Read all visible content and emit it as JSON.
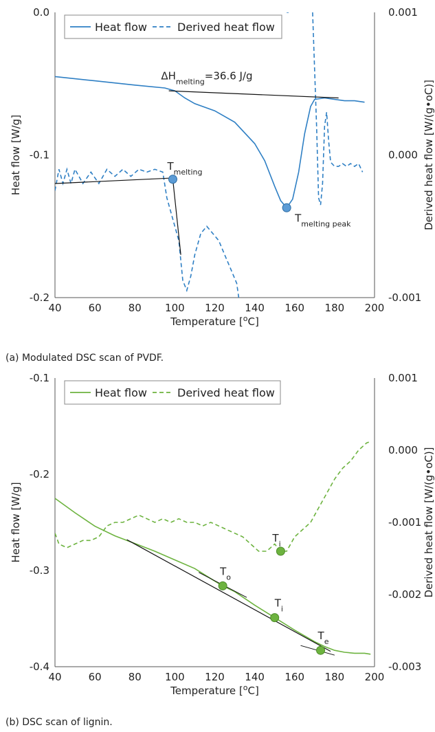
{
  "chart_data": [
    {
      "type": "line",
      "caption": "(a) Modulated DSC scan of PVDF.",
      "xlabel": "Temperature [",
      "xlabel_sup": "o",
      "xlabel_end": "C]",
      "ylabel": "Heat flow [W/g]",
      "y2label": "Derived heat flow [W/(g•oC)]",
      "xlim": [
        40,
        200
      ],
      "ylim": [
        -0.2,
        0.0
      ],
      "y2lim": [
        -0.001,
        0.001
      ],
      "xticks": [
        "40",
        "60",
        "80",
        "100",
        "120",
        "140",
        "160",
        "180",
        "200"
      ],
      "yticks": [
        "0.0",
        "-0.1",
        "-0.2"
      ],
      "y2ticks": [
        "0.001",
        "0.000",
        "-0.001"
      ],
      "legend": [
        "Heat flow",
        "Derived heat flow"
      ],
      "grid": false,
      "legend_position": "top-left",
      "colors": {
        "heat": "#2e7fc4",
        "derived": "#2e7fc4",
        "marker": "#5b9bd5"
      },
      "series": [
        {
          "name": "Heat flow",
          "axis": "left",
          "x": [
            40,
            60,
            80,
            95,
            100,
            105,
            110,
            120,
            130,
            140,
            145,
            150,
            153,
            156,
            159,
            162,
            165,
            168,
            170,
            175,
            180,
            185,
            190,
            195
          ],
          "y": [
            -0.045,
            -0.048,
            -0.051,
            -0.053,
            -0.055,
            -0.06,
            -0.064,
            -0.069,
            -0.077,
            -0.092,
            -0.104,
            -0.122,
            -0.132,
            -0.137,
            -0.131,
            -0.112,
            -0.085,
            -0.066,
            -0.061,
            -0.06,
            -0.061,
            -0.062,
            -0.062,
            -0.063
          ]
        },
        {
          "name": "Derived heat flow",
          "axis": "right",
          "x": [
            40,
            42,
            44,
            46,
            48,
            50,
            54,
            58,
            62,
            66,
            70,
            74,
            78,
            82,
            86,
            90,
            94,
            96,
            98,
            100,
            102,
            104,
            106,
            108,
            110,
            113,
            116,
            119,
            122,
            125,
            128,
            131,
            132,
            134,
            136,
            138,
            140,
            142,
            144,
            146,
            148,
            150,
            152,
            154,
            155,
            156,
            157,
            158,
            160,
            162,
            164,
            166,
            168,
            169,
            170,
            171,
            172,
            173,
            174,
            175,
            176,
            177,
            178,
            180,
            182,
            184,
            186,
            188,
            190,
            192,
            194
          ],
          "y": [
            -0.00025,
            -0.0001,
            -0.0002,
            -0.0001,
            -0.0002,
            -0.0001,
            -0.0002,
            -0.00012,
            -0.0002,
            -0.0001,
            -0.00015,
            -0.0001,
            -0.00015,
            -0.0001,
            -0.00012,
            -0.0001,
            -0.00012,
            -0.0003,
            -0.0004,
            -0.0005,
            -0.0006,
            -0.00088,
            -0.00095,
            -0.00085,
            -0.0007,
            -0.00055,
            -0.0005,
            -0.00055,
            -0.0006,
            -0.0007,
            -0.0008,
            -0.0009,
            -0.001,
            null,
            null,
            null,
            null,
            null,
            null,
            null,
            null,
            null,
            null,
            null,
            null,
            0.001,
            0.001,
            null,
            null,
            null,
            null,
            null,
            null,
            0.001,
            0.0006,
            0.0002,
            -0.0003,
            -0.00035,
            -0.0002,
            0.0002,
            0.0003,
            0.0001,
            -5e-05,
            -8e-05,
            -8e-05,
            -6e-05,
            -8e-05,
            -6e-05,
            -8e-05,
            -6e-05,
            -0.00012
          ]
        }
      ],
      "annotations": {
        "delta_h": "ΔH",
        "delta_h_sub": "melting",
        "delta_h_val": "=36.6 J/g",
        "t_label": "T",
        "t_melting_sub": "melting",
        "t_peak_sub": "melting peak",
        "t_melting_point": [
          99,
          -0.117
        ],
        "t_peak_point": [
          156,
          -0.137
        ],
        "baseline": [
          [
            97,
            -0.055
          ],
          [
            182,
            -0.06
          ]
        ],
        "onset_line": [
          [
            40,
            -0.12
          ],
          [
            101,
            -0.116
          ]
        ],
        "onset_tangent": [
          [
            99,
            -0.117
          ],
          [
            103,
            -0.17
          ]
        ]
      }
    },
    {
      "type": "line",
      "caption": "(b) DSC scan of lignin.",
      "xlabel": "Temperature [",
      "xlabel_sup": "o",
      "xlabel_end": "C]",
      "ylabel": "Heat flow [W/g]",
      "y2label": "Derived heat flow [W/(g•oC)]",
      "xlim": [
        40,
        200
      ],
      "ylim": [
        -0.4,
        -0.1
      ],
      "y2lim": [
        -0.003,
        0.001
      ],
      "xticks": [
        "40",
        "60",
        "80",
        "100",
        "120",
        "140",
        "160",
        "180",
        "200"
      ],
      "yticks": [
        "-0.1",
        "-0.2",
        "-0.3",
        "-0.4"
      ],
      "y2ticks": [
        "0.001",
        "0.000",
        "-0.001",
        "-0.002",
        "-0.003"
      ],
      "legend": [
        "Heat flow",
        "Derived heat flow"
      ],
      "grid": false,
      "legend_position": "top-left",
      "colors": {
        "heat": "#6db33f",
        "derived": "#6db33f",
        "marker": "#6db33f"
      },
      "series": [
        {
          "name": "Heat flow",
          "axis": "left",
          "x": [
            40,
            50,
            60,
            70,
            80,
            90,
            100,
            110,
            120,
            124,
            130,
            140,
            150,
            160,
            170,
            175,
            180,
            185,
            190,
            195,
            198
          ],
          "y": [
            -0.225,
            -0.24,
            -0.254,
            -0.264,
            -0.272,
            -0.28,
            -0.289,
            -0.298,
            -0.311,
            -0.316,
            -0.322,
            -0.336,
            -0.349,
            -0.362,
            -0.374,
            -0.379,
            -0.383,
            -0.385,
            -0.386,
            -0.386,
            -0.387
          ]
        },
        {
          "name": "Derived heat flow",
          "axis": "right",
          "x": [
            40,
            42,
            46,
            50,
            54,
            58,
            62,
            66,
            70,
            74,
            78,
            82,
            86,
            90,
            94,
            98,
            102,
            106,
            110,
            114,
            118,
            122,
            126,
            130,
            134,
            138,
            142,
            146,
            150,
            153,
            156,
            160,
            164,
            168,
            172,
            176,
            180,
            184,
            188,
            192,
            196,
            198
          ],
          "y": [
            -0.00115,
            -0.0013,
            -0.00135,
            -0.0013,
            -0.00125,
            -0.00125,
            -0.0012,
            -0.00105,
            -0.001,
            -0.001,
            -0.00095,
            -0.0009,
            -0.00095,
            -0.001,
            -0.00095,
            -0.001,
            -0.00095,
            -0.001,
            -0.001,
            -0.00105,
            -0.001,
            -0.00105,
            -0.0011,
            -0.00115,
            -0.0012,
            -0.0013,
            -0.0014,
            -0.0014,
            -0.0013,
            -0.0014,
            -0.0014,
            -0.0012,
            -0.0011,
            -0.001,
            -0.0008,
            -0.0006,
            -0.0004,
            -0.00025,
            -0.00015,
            0.0,
            0.0001,
            0.00012
          ]
        }
      ],
      "annotations": {
        "t_label": "T",
        "ti_sub": "i",
        "to_sub": "o",
        "te_sub": "e",
        "ti_derived_point": [
          153,
          -0.0014
        ],
        "to_point": [
          124,
          -0.316
        ],
        "ti_point": [
          150,
          -0.349
        ],
        "te_point": [
          173,
          -0.383
        ],
        "tangent_main": [
          [
            76,
            -0.268
          ],
          [
            178,
            -0.384
          ]
        ],
        "tangent_o": [
          [
            112,
            -0.302
          ],
          [
            136,
            -0.328
          ]
        ],
        "tangent_e": [
          [
            163,
            -0.378
          ],
          [
            180,
            -0.388
          ]
        ]
      }
    }
  ]
}
